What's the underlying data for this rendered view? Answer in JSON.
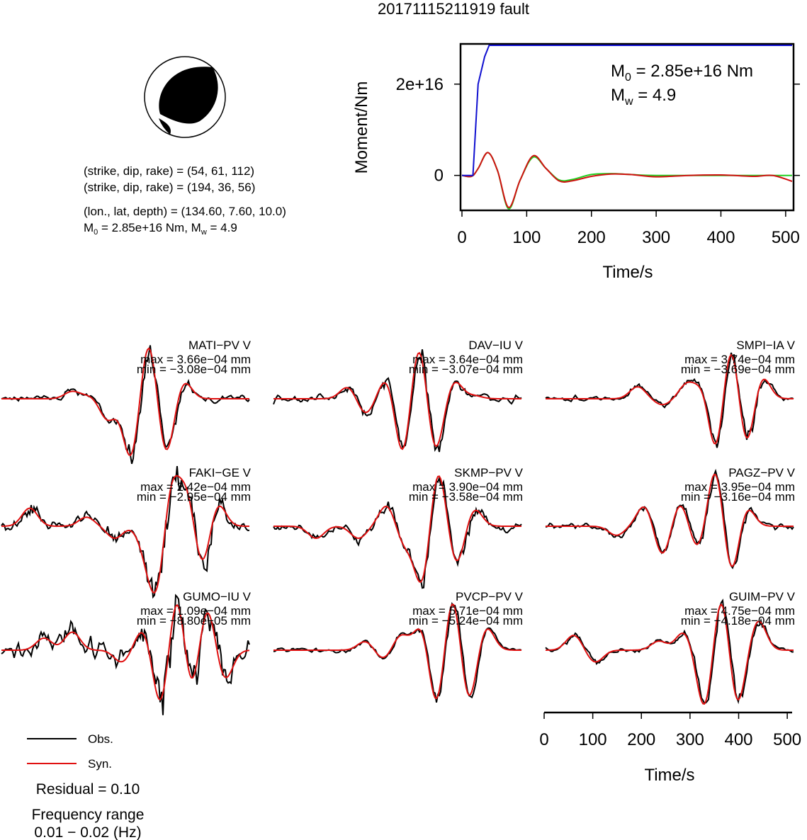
{
  "title": "20171115211919 fault",
  "mechanism": {
    "plane1": "(strike, dip, rake) = (54, 61, 112)",
    "plane2": "(strike, dip, rake) = (194, 36, 56)",
    "location": "(lon., lat, depth) = (134.60, 7.60, 10.0)",
    "m0_line_a": "M",
    "m0_line_sub_a": "0",
    "m0_line_b": " = 2.85e+16 Nm, M",
    "m0_line_sub_b": "w",
    "m0_line_c": " = 4.9"
  },
  "moment_panel": {
    "ylabel": "Moment/Nm",
    "xlabel": "Time/s",
    "m0_prefix": "M",
    "m0_sub": "0",
    "m0_value": " = 2.85e+16 Nm",
    "mw_prefix": "M",
    "mw_sub": "w",
    "mw_value": " = 4.9",
    "yticks": [
      "2e+16",
      "0"
    ],
    "xticks": [
      "0",
      "100",
      "200",
      "300",
      "400",
      "500"
    ]
  },
  "waveform_axis": {
    "xlabel": "Time/s",
    "xticks": [
      "0",
      "100",
      "200",
      "300",
      "400",
      "500"
    ]
  },
  "legend": {
    "obs": "Obs.",
    "syn": "Syn.",
    "residual": "Residual = 0.10",
    "freq_title": "Frequency range",
    "freq_value": "0.01 − 0.02 (Hz)"
  },
  "colors": {
    "observed": "#000000",
    "synthetic": "#e01010",
    "cumulative_moment": "#1010d0",
    "moment_rate_obs": "#d01010",
    "moment_rate_fit": "#20d020"
  },
  "chart_data": [
    {
      "type": "line",
      "title": "",
      "xlabel": "Time/s",
      "ylabel": "Moment/Nm",
      "xlim": [
        0,
        510
      ],
      "ylim": [
        -7500000000000000.0,
        2.85e+16
      ],
      "series": [
        {
          "x": [
            0,
            17,
            25,
            35,
            42,
            60,
            100,
            200,
            300,
            400,
            510
          ],
          "y": [
            0,
            0,
            2e+16,
            2.6e+16,
            2.85e+16,
            2.85e+16,
            2.85e+16,
            2.85e+16,
            2.85e+16,
            2.85e+16,
            2.85e+16
          ]
        },
        {
          "x": [
            0,
            15,
            25,
            40,
            55,
            72,
            90,
            110,
            130,
            150,
            170,
            200,
            230,
            260,
            300,
            350,
            400,
            450,
            480,
            510
          ],
          "y": [
            0,
            -200000000000000.0,
            1500000000000000.0,
            5000000000000000.0,
            1000000000000000.0,
            -7000000000000000.0,
            -1000000000000000.0,
            4300000000000000.0,
            1500000000000000.0,
            -1200000000000000.0,
            -1200000000000000.0,
            -200000000000000.0,
            300000000000000.0,
            200000000000000.0,
            -300000000000000.0,
            0,
            100000000000000.0,
            -200000000000000.0,
            0,
            -1300000000000000.0
          ]
        },
        {
          "x": [
            0,
            15,
            25,
            40,
            55,
            72,
            90,
            110,
            130,
            150,
            170,
            200,
            230,
            260,
            300,
            400,
            510
          ],
          "y": [
            0,
            -200000000000000.0,
            1500000000000000.0,
            5000000000000000.0,
            1000000000000000.0,
            -7300000000000000.0,
            -1000000000000000.0,
            4000000000000000.0,
            1500000000000000.0,
            -1000000000000000.0,
            -900000000000000.0,
            200000000000000.0,
            400000000000000.0,
            200000000000000.0,
            0,
            0,
            0
          ]
        }
      ]
    },
    {
      "type": "line",
      "xlabel": "Time/s",
      "xlim": [
        0,
        510
      ],
      "series": [
        {
          "name": "Obs."
        },
        {
          "name": "Syn."
        }
      ],
      "stations": [
        {
          "label": "MATI−PV V",
          "max": "max = 3.66e−04 mm",
          "min": "min = −3.08e−04 mm",
          "peaks": [
            [
              100,
              0.12
            ],
            [
              125,
              0.05
            ],
            [
              150,
              -0.35
            ],
            [
              183,
              -1.0
            ],
            [
              208,
              1.0
            ],
            [
              232,
              -0.95
            ],
            [
              257,
              0.3
            ],
            [
              283,
              0.0
            ]
          ],
          "noise": 0.08,
          "misfit": 0.25
        },
        {
          "label": "DAV−IU V",
          "max": "max = 3.64e−04 mm",
          "min": "min = −3.07e−04 mm",
          "peaks": [
            [
              105,
              0.2
            ],
            [
              130,
              -0.25
            ],
            [
              160,
              0.35
            ],
            [
              183,
              -1.0
            ],
            [
              205,
              1.0
            ],
            [
              228,
              -0.9
            ],
            [
              255,
              0.3
            ],
            [
              283,
              0.05
            ]
          ],
          "noise": 0.1,
          "misfit": 0.25
        },
        {
          "label": "SMPI−IA V",
          "max": "max = 3.74e−04 mm",
          "min": "min = −3.69e−04 mm",
          "peaks": [
            [
              130,
              0.2
            ],
            [
              165,
              -0.1
            ],
            [
              200,
              0.25
            ],
            [
              225,
              0.3
            ],
            [
              240,
              -1.0
            ],
            [
              262,
              1.0
            ],
            [
              283,
              -0.85
            ],
            [
              305,
              0.4
            ]
          ],
          "noise": 0.06,
          "misfit": 0.2
        },
        {
          "label": "FAKI−GE V",
          "max": "max = 2.42e−04 mm",
          "min": "min = −2.95e−04 mm",
          "peaks": [
            [
              40,
              0.3
            ],
            [
              120,
              0.15
            ],
            [
              160,
              -0.2
            ],
            [
              205,
              -0.4
            ],
            [
              220,
              -1.0
            ],
            [
              240,
              0.8
            ],
            [
              262,
              0.6
            ],
            [
              283,
              -0.7
            ],
            [
              305,
              0.4
            ]
          ],
          "noise": 0.15,
          "misfit": 0.5
        },
        {
          "label": "SKMP−PV V",
          "max": "max = 3.90e−04 mm",
          "min": "min = −3.58e−04 mm",
          "peaks": [
            [
              60,
              -0.2
            ],
            [
              120,
              -0.2
            ],
            [
              160,
              0.35
            ],
            [
              185,
              -0.3
            ],
            [
              210,
              -1.0
            ],
            [
              232,
              1.0
            ],
            [
              258,
              -0.65
            ],
            [
              283,
              0.3
            ]
          ],
          "noise": 0.12,
          "misfit": 0.35
        },
        {
          "label": "PAGZ−PV V",
          "max": "max = 3.95e−04 mm",
          "min": "min = −3.16e−04 mm",
          "peaks": [
            [
              100,
              -0.15
            ],
            [
              140,
              0.35
            ],
            [
              165,
              -0.5
            ],
            [
              190,
              0.4
            ],
            [
              215,
              -0.4
            ],
            [
              240,
              1.0
            ],
            [
              262,
              -0.85
            ],
            [
              283,
              0.35
            ]
          ],
          "noise": 0.08,
          "misfit": 0.2
        },
        {
          "label": "GUMO−IU V",
          "max": "max = 1.09e−04 mm",
          "min": "min = −8.80e−05 mm",
          "peaks": [
            [
              60,
              0.2
            ],
            [
              100,
              0.3
            ],
            [
              170,
              -0.2
            ],
            [
              200,
              0.35
            ],
            [
              225,
              -0.95
            ],
            [
              248,
              1.0
            ],
            [
              268,
              -0.75
            ],
            [
              290,
              0.75
            ],
            [
              315,
              -0.5
            ]
          ],
          "noise": 0.22,
          "misfit": 0.55
        },
        {
          "label": "PVCP−PV V",
          "max": "max = 5.71e−04 mm",
          "min": "min = −5.24e−04 mm",
          "peaks": [
            [
              130,
              0.15
            ],
            [
              155,
              -0.15
            ],
            [
              180,
              0.25
            ],
            [
              210,
              0.45
            ],
            [
              230,
              -1.0
            ],
            [
              253,
              1.0
            ],
            [
              275,
              -0.9
            ],
            [
              300,
              0.4
            ]
          ],
          "noise": 0.06,
          "misfit": 0.15
        },
        {
          "label": "GUIM−PV V",
          "max": "max = 4.75e−04 mm",
          "min": "min = −4.18e−04 mm",
          "peaks": [
            [
              40,
              0.25
            ],
            [
              70,
              -0.2
            ],
            [
              160,
              0.15
            ],
            [
              195,
              0.3
            ],
            [
              225,
              -1.0
            ],
            [
              248,
              1.0
            ],
            [
              270,
              -0.95
            ],
            [
              300,
              0.5
            ]
          ],
          "noise": 0.06,
          "misfit": 0.2
        }
      ]
    }
  ]
}
